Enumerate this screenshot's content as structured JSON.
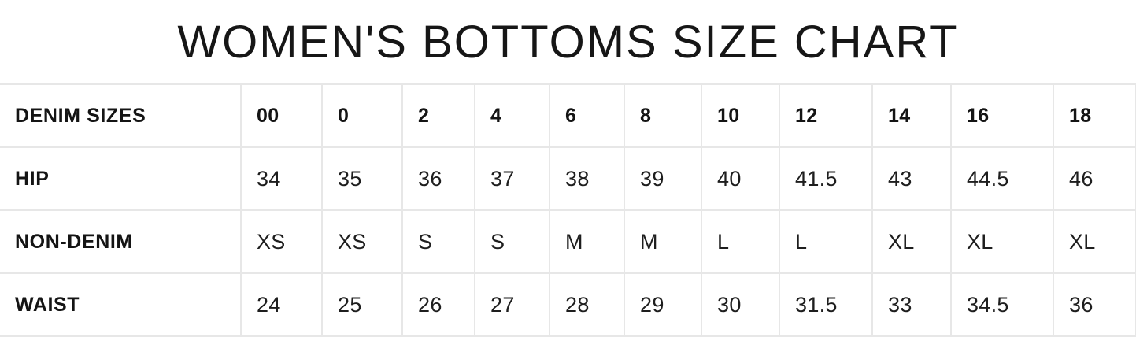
{
  "chart_data": {
    "type": "table",
    "title": "WOMEN'S BOTTOMS SIZE CHART",
    "columns": [
      "DENIM SIZES",
      "00",
      "0",
      "2",
      "4",
      "6",
      "8",
      "10",
      "12",
      "14",
      "16",
      "18"
    ],
    "rows": [
      [
        "HIP",
        "34",
        "35",
        "36",
        "37",
        "38",
        "39",
        "40",
        "41.5",
        "43",
        "44.5",
        "46"
      ],
      [
        "NON-DENIM",
        "XS",
        "XS",
        "S",
        "S",
        "M",
        "M",
        "L",
        "L",
        "XL",
        "XL",
        "XL"
      ],
      [
        "WAIST",
        "24",
        "25",
        "26",
        "27",
        "28",
        "29",
        "30",
        "31.5",
        "33",
        "34.5",
        "36"
      ]
    ],
    "layout": {
      "grid": "on",
      "header_row_bold": true,
      "label_column_bold": true
    }
  },
  "colors": {
    "background": "#ffffff",
    "text": "#1e1e1e",
    "bold_text": "#141414",
    "border": "#e7e7e7"
  }
}
